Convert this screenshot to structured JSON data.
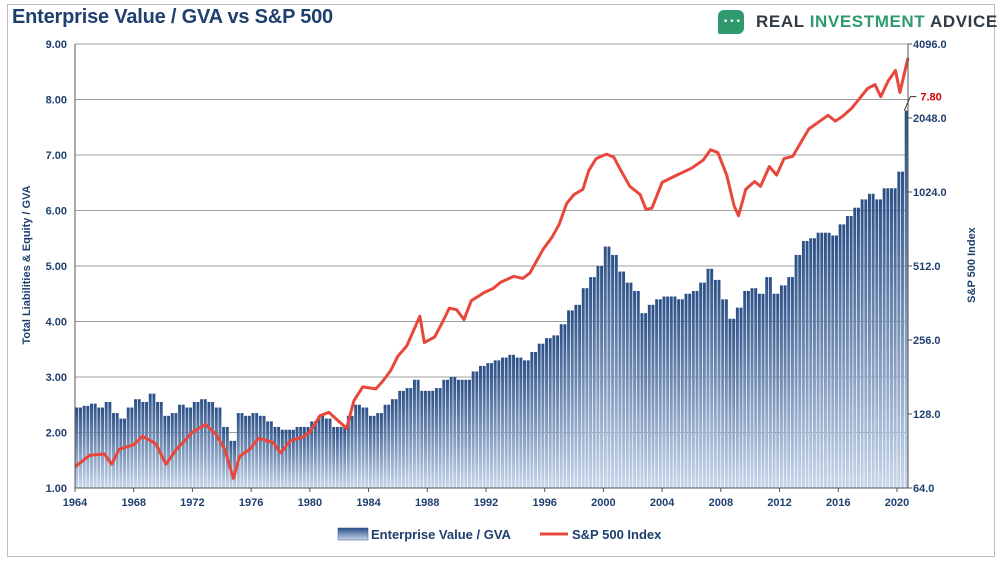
{
  "title": "Enterprise Value / GVA vs S&P 500",
  "brand": {
    "prefix": "REAL ",
    "accent": "INVESTMENT",
    "suffix": " ADVICE",
    "logo_icon": "chat-bubble-icon"
  },
  "colors": {
    "bar_top": "#2a4f86",
    "bar_bottom": "#c7d6ea",
    "line": "#e8473b",
    "grid": "#7f7f7f",
    "text": "#1f3f6e",
    "callout": "#d40000"
  },
  "chart_data": {
    "type": "bar+line",
    "title": "Enterprise Value / GVA vs S&P 500",
    "x_ticks": [
      "1964",
      "1968",
      "1972",
      "1976",
      "1980",
      "1984",
      "1988",
      "1992",
      "1996",
      "2000",
      "2004",
      "2008",
      "2012",
      "2016",
      "2020"
    ],
    "xlim": [
      1964,
      2020.75
    ],
    "ylabel_left": "Total Liabilities & Equity / GVA",
    "ylabel_right": "S&P 500 Index",
    "ylim_left": [
      1.0,
      9.0
    ],
    "y_ticks_left": [
      "1.00",
      "2.00",
      "3.00",
      "4.00",
      "5.00",
      "6.00",
      "7.00",
      "8.00",
      "9.00"
    ],
    "y_ticks_right": [
      "64.0",
      "128.0",
      "256.0",
      "512.0",
      "1024.0",
      "2048.0",
      "4096.0"
    ],
    "right_scale": "log2",
    "ylim_right": [
      64,
      4096
    ],
    "grid": true,
    "legend_position": "bottom-center",
    "callout": {
      "label": "7.80",
      "x": 2020.5,
      "y": 7.8
    },
    "series": [
      {
        "name": "Enterprise Value / GVA",
        "type": "bar",
        "points": [
          [
            1964,
            2.45
          ],
          [
            1964.5,
            2.48
          ],
          [
            1965,
            2.52
          ],
          [
            1965.5,
            2.45
          ],
          [
            1966,
            2.55
          ],
          [
            1966.5,
            2.35
          ],
          [
            1967,
            2.25
          ],
          [
            1967.5,
            2.45
          ],
          [
            1968,
            2.6
          ],
          [
            1968.5,
            2.55
          ],
          [
            1969,
            2.7
          ],
          [
            1969.5,
            2.55
          ],
          [
            1970,
            2.3
          ],
          [
            1970.5,
            2.35
          ],
          [
            1971,
            2.5
          ],
          [
            1971.5,
            2.45
          ],
          [
            1972,
            2.55
          ],
          [
            1972.5,
            2.6
          ],
          [
            1973,
            2.55
          ],
          [
            1973.5,
            2.45
          ],
          [
            1974,
            2.1
          ],
          [
            1974.5,
            1.85
          ],
          [
            1975,
            2.35
          ],
          [
            1975.5,
            2.3
          ],
          [
            1976,
            2.35
          ],
          [
            1976.5,
            2.3
          ],
          [
            1977,
            2.2
          ],
          [
            1977.5,
            2.1
          ],
          [
            1978,
            2.05
          ],
          [
            1978.5,
            2.05
          ],
          [
            1979,
            2.1
          ],
          [
            1979.5,
            2.1
          ],
          [
            1980,
            2.2
          ],
          [
            1980.5,
            2.3
          ],
          [
            1981,
            2.25
          ],
          [
            1981.5,
            2.1
          ],
          [
            1982,
            2.1
          ],
          [
            1982.5,
            2.3
          ],
          [
            1983,
            2.5
          ],
          [
            1983.5,
            2.45
          ],
          [
            1984,
            2.3
          ],
          [
            1984.5,
            2.35
          ],
          [
            1985,
            2.5
          ],
          [
            1985.5,
            2.6
          ],
          [
            1986,
            2.75
          ],
          [
            1986.5,
            2.8
          ],
          [
            1987,
            2.95
          ],
          [
            1987.5,
            2.75
          ],
          [
            1988,
            2.75
          ],
          [
            1988.5,
            2.8
          ],
          [
            1989,
            2.95
          ],
          [
            1989.5,
            3.0
          ],
          [
            1990,
            2.95
          ],
          [
            1990.5,
            2.95
          ],
          [
            1991,
            3.1
          ],
          [
            1991.5,
            3.2
          ],
          [
            1992,
            3.25
          ],
          [
            1992.5,
            3.3
          ],
          [
            1993,
            3.35
          ],
          [
            1993.5,
            3.4
          ],
          [
            1994,
            3.35
          ],
          [
            1994.5,
            3.3
          ],
          [
            1995,
            3.45
          ],
          [
            1995.5,
            3.6
          ],
          [
            1996,
            3.7
          ],
          [
            1996.5,
            3.75
          ],
          [
            1997,
            3.95
          ],
          [
            1997.5,
            4.2
          ],
          [
            1998,
            4.3
          ],
          [
            1998.5,
            4.6
          ],
          [
            1999,
            4.8
          ],
          [
            1999.5,
            5.0
          ],
          [
            2000,
            5.35
          ],
          [
            2000.5,
            5.2
          ],
          [
            2001,
            4.9
          ],
          [
            2001.5,
            4.7
          ],
          [
            2002,
            4.55
          ],
          [
            2002.5,
            4.15
          ],
          [
            2003,
            4.3
          ],
          [
            2003.5,
            4.4
          ],
          [
            2004,
            4.45
          ],
          [
            2004.5,
            4.45
          ],
          [
            2005,
            4.4
          ],
          [
            2005.5,
            4.5
          ],
          [
            2006,
            4.55
          ],
          [
            2006.5,
            4.7
          ],
          [
            2007,
            4.95
          ],
          [
            2007.5,
            4.75
          ],
          [
            2008,
            4.4
          ],
          [
            2008.5,
            4.05
          ],
          [
            2009,
            4.25
          ],
          [
            2009.5,
            4.55
          ],
          [
            2010,
            4.6
          ],
          [
            2010.5,
            4.5
          ],
          [
            2011,
            4.8
          ],
          [
            2011.5,
            4.5
          ],
          [
            2012,
            4.65
          ],
          [
            2012.5,
            4.8
          ],
          [
            2013,
            5.2
          ],
          [
            2013.5,
            5.45
          ],
          [
            2014,
            5.5
          ],
          [
            2014.5,
            5.6
          ],
          [
            2015,
            5.6
          ],
          [
            2015.5,
            5.55
          ],
          [
            2016,
            5.75
          ],
          [
            2016.5,
            5.9
          ],
          [
            2017,
            6.05
          ],
          [
            2017.5,
            6.2
          ],
          [
            2018,
            6.3
          ],
          [
            2018.5,
            6.2
          ],
          [
            2019,
            6.4
          ],
          [
            2019.5,
            6.4
          ],
          [
            2020,
            6.7
          ],
          [
            2020.5,
            7.8
          ]
        ]
      },
      {
        "name": "S&P 500 Index",
        "type": "line",
        "points": [
          [
            1964,
            78
          ],
          [
            1965,
            87
          ],
          [
            1966,
            88
          ],
          [
            1966.5,
            80
          ],
          [
            1967,
            92
          ],
          [
            1968,
            96
          ],
          [
            1968.6,
            104
          ],
          [
            1969.5,
            97
          ],
          [
            1970.2,
            80
          ],
          [
            1970.9,
            92
          ],
          [
            1971.5,
            100
          ],
          [
            1972,
            108
          ],
          [
            1972.9,
            116
          ],
          [
            1973.6,
            106
          ],
          [
            1974.2,
            92
          ],
          [
            1974.8,
            70
          ],
          [
            1975.2,
            86
          ],
          [
            1975.9,
            92
          ],
          [
            1976.5,
            102
          ],
          [
            1977.5,
            98
          ],
          [
            1978,
            89
          ],
          [
            1978.7,
            100
          ],
          [
            1979.5,
            103
          ],
          [
            1980,
            108
          ],
          [
            1980.7,
            126
          ],
          [
            1981.3,
            130
          ],
          [
            1981.8,
            122
          ],
          [
            1982.5,
            112
          ],
          [
            1983,
            145
          ],
          [
            1983.6,
            165
          ],
          [
            1984.5,
            162
          ],
          [
            1985,
            175
          ],
          [
            1985.5,
            192
          ],
          [
            1986,
            220
          ],
          [
            1986.6,
            242
          ],
          [
            1987.5,
            320
          ],
          [
            1987.8,
            250
          ],
          [
            1988.5,
            263
          ],
          [
            1989,
            300
          ],
          [
            1989.5,
            345
          ],
          [
            1990,
            340
          ],
          [
            1990.5,
            310
          ],
          [
            1991,
            370
          ],
          [
            1991.9,
            400
          ],
          [
            1992.5,
            415
          ],
          [
            1993,
            440
          ],
          [
            1993.9,
            465
          ],
          [
            1994.5,
            456
          ],
          [
            1995,
            480
          ],
          [
            1995.9,
            600
          ],
          [
            1996.5,
            670
          ],
          [
            1997,
            760
          ],
          [
            1997.5,
            920
          ],
          [
            1998,
            1000
          ],
          [
            1998.6,
            1050
          ],
          [
            1999,
            1250
          ],
          [
            1999.5,
            1400
          ],
          [
            2000.2,
            1460
          ],
          [
            2000.7,
            1420
          ],
          [
            2001.2,
            1250
          ],
          [
            2001.8,
            1080
          ],
          [
            2002.5,
            1000
          ],
          [
            2002.9,
            870
          ],
          [
            2003.3,
            880
          ],
          [
            2004,
            1120
          ],
          [
            2005,
            1200
          ],
          [
            2006,
            1280
          ],
          [
            2006.8,
            1380
          ],
          [
            2007.3,
            1520
          ],
          [
            2007.8,
            1480
          ],
          [
            2008.4,
            1200
          ],
          [
            2008.9,
            900
          ],
          [
            2009.2,
            820
          ],
          [
            2009.7,
            1050
          ],
          [
            2010.3,
            1130
          ],
          [
            2010.7,
            1080
          ],
          [
            2011.3,
            1300
          ],
          [
            2011.8,
            1200
          ],
          [
            2012.3,
            1400
          ],
          [
            2012.9,
            1430
          ],
          [
            2013.5,
            1650
          ],
          [
            2014,
            1850
          ],
          [
            2014.6,
            1960
          ],
          [
            2015.3,
            2100
          ],
          [
            2015.8,
            1990
          ],
          [
            2016.3,
            2080
          ],
          [
            2016.9,
            2240
          ],
          [
            2017.5,
            2480
          ],
          [
            2018,
            2700
          ],
          [
            2018.5,
            2800
          ],
          [
            2018.9,
            2500
          ],
          [
            2019.4,
            2900
          ],
          [
            2019.9,
            3200
          ],
          [
            2020.2,
            2600
          ],
          [
            2020.5,
            3100
          ],
          [
            2020.75,
            3600
          ]
        ]
      }
    ]
  }
}
